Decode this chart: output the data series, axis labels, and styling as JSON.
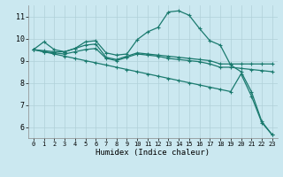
{
  "xlabel": "Humidex (Indice chaleur)",
  "bg_color": "#cbe8f0",
  "grid_color": "#b0d0d8",
  "line_color": "#1a7a6e",
  "x": [
    0,
    1,
    2,
    3,
    4,
    5,
    6,
    7,
    8,
    9,
    10,
    11,
    12,
    13,
    14,
    15,
    16,
    17,
    18,
    19,
    20,
    21,
    22,
    23
  ],
  "line1": [
    9.5,
    9.85,
    9.5,
    9.4,
    9.55,
    9.85,
    9.9,
    9.35,
    9.25,
    9.3,
    9.95,
    10.3,
    10.5,
    11.2,
    11.25,
    11.05,
    10.45,
    9.9,
    9.7,
    8.8,
    8.5,
    7.6,
    6.25,
    5.65
  ],
  "line2": [
    9.5,
    9.45,
    9.4,
    9.4,
    9.55,
    9.7,
    9.75,
    9.15,
    9.05,
    9.2,
    9.35,
    9.3,
    9.25,
    9.2,
    9.15,
    9.1,
    9.05,
    9.0,
    8.85,
    8.85,
    8.85,
    8.85,
    8.85,
    8.85
  ],
  "line3": [
    9.5,
    9.4,
    9.35,
    9.3,
    9.4,
    9.5,
    9.55,
    9.1,
    9.0,
    9.15,
    9.3,
    9.25,
    9.2,
    9.1,
    9.05,
    9.0,
    8.95,
    8.85,
    8.7,
    8.7,
    8.65,
    8.6,
    8.55,
    8.5
  ],
  "line4": [
    9.5,
    9.4,
    9.3,
    9.2,
    9.1,
    9.0,
    8.9,
    8.8,
    8.7,
    8.6,
    8.5,
    8.4,
    8.3,
    8.2,
    8.1,
    8.0,
    7.9,
    7.8,
    7.7,
    7.6,
    8.4,
    7.4,
    6.2,
    5.65
  ],
  "ylim": [
    5.5,
    11.5
  ],
  "yticks": [
    6,
    7,
    8,
    9,
    10,
    11
  ],
  "xlim": [
    -0.5,
    23.5
  ],
  "xticks": [
    0,
    1,
    2,
    3,
    4,
    5,
    6,
    7,
    8,
    9,
    10,
    11,
    12,
    13,
    14,
    15,
    16,
    17,
    18,
    19,
    20,
    21,
    22,
    23
  ]
}
